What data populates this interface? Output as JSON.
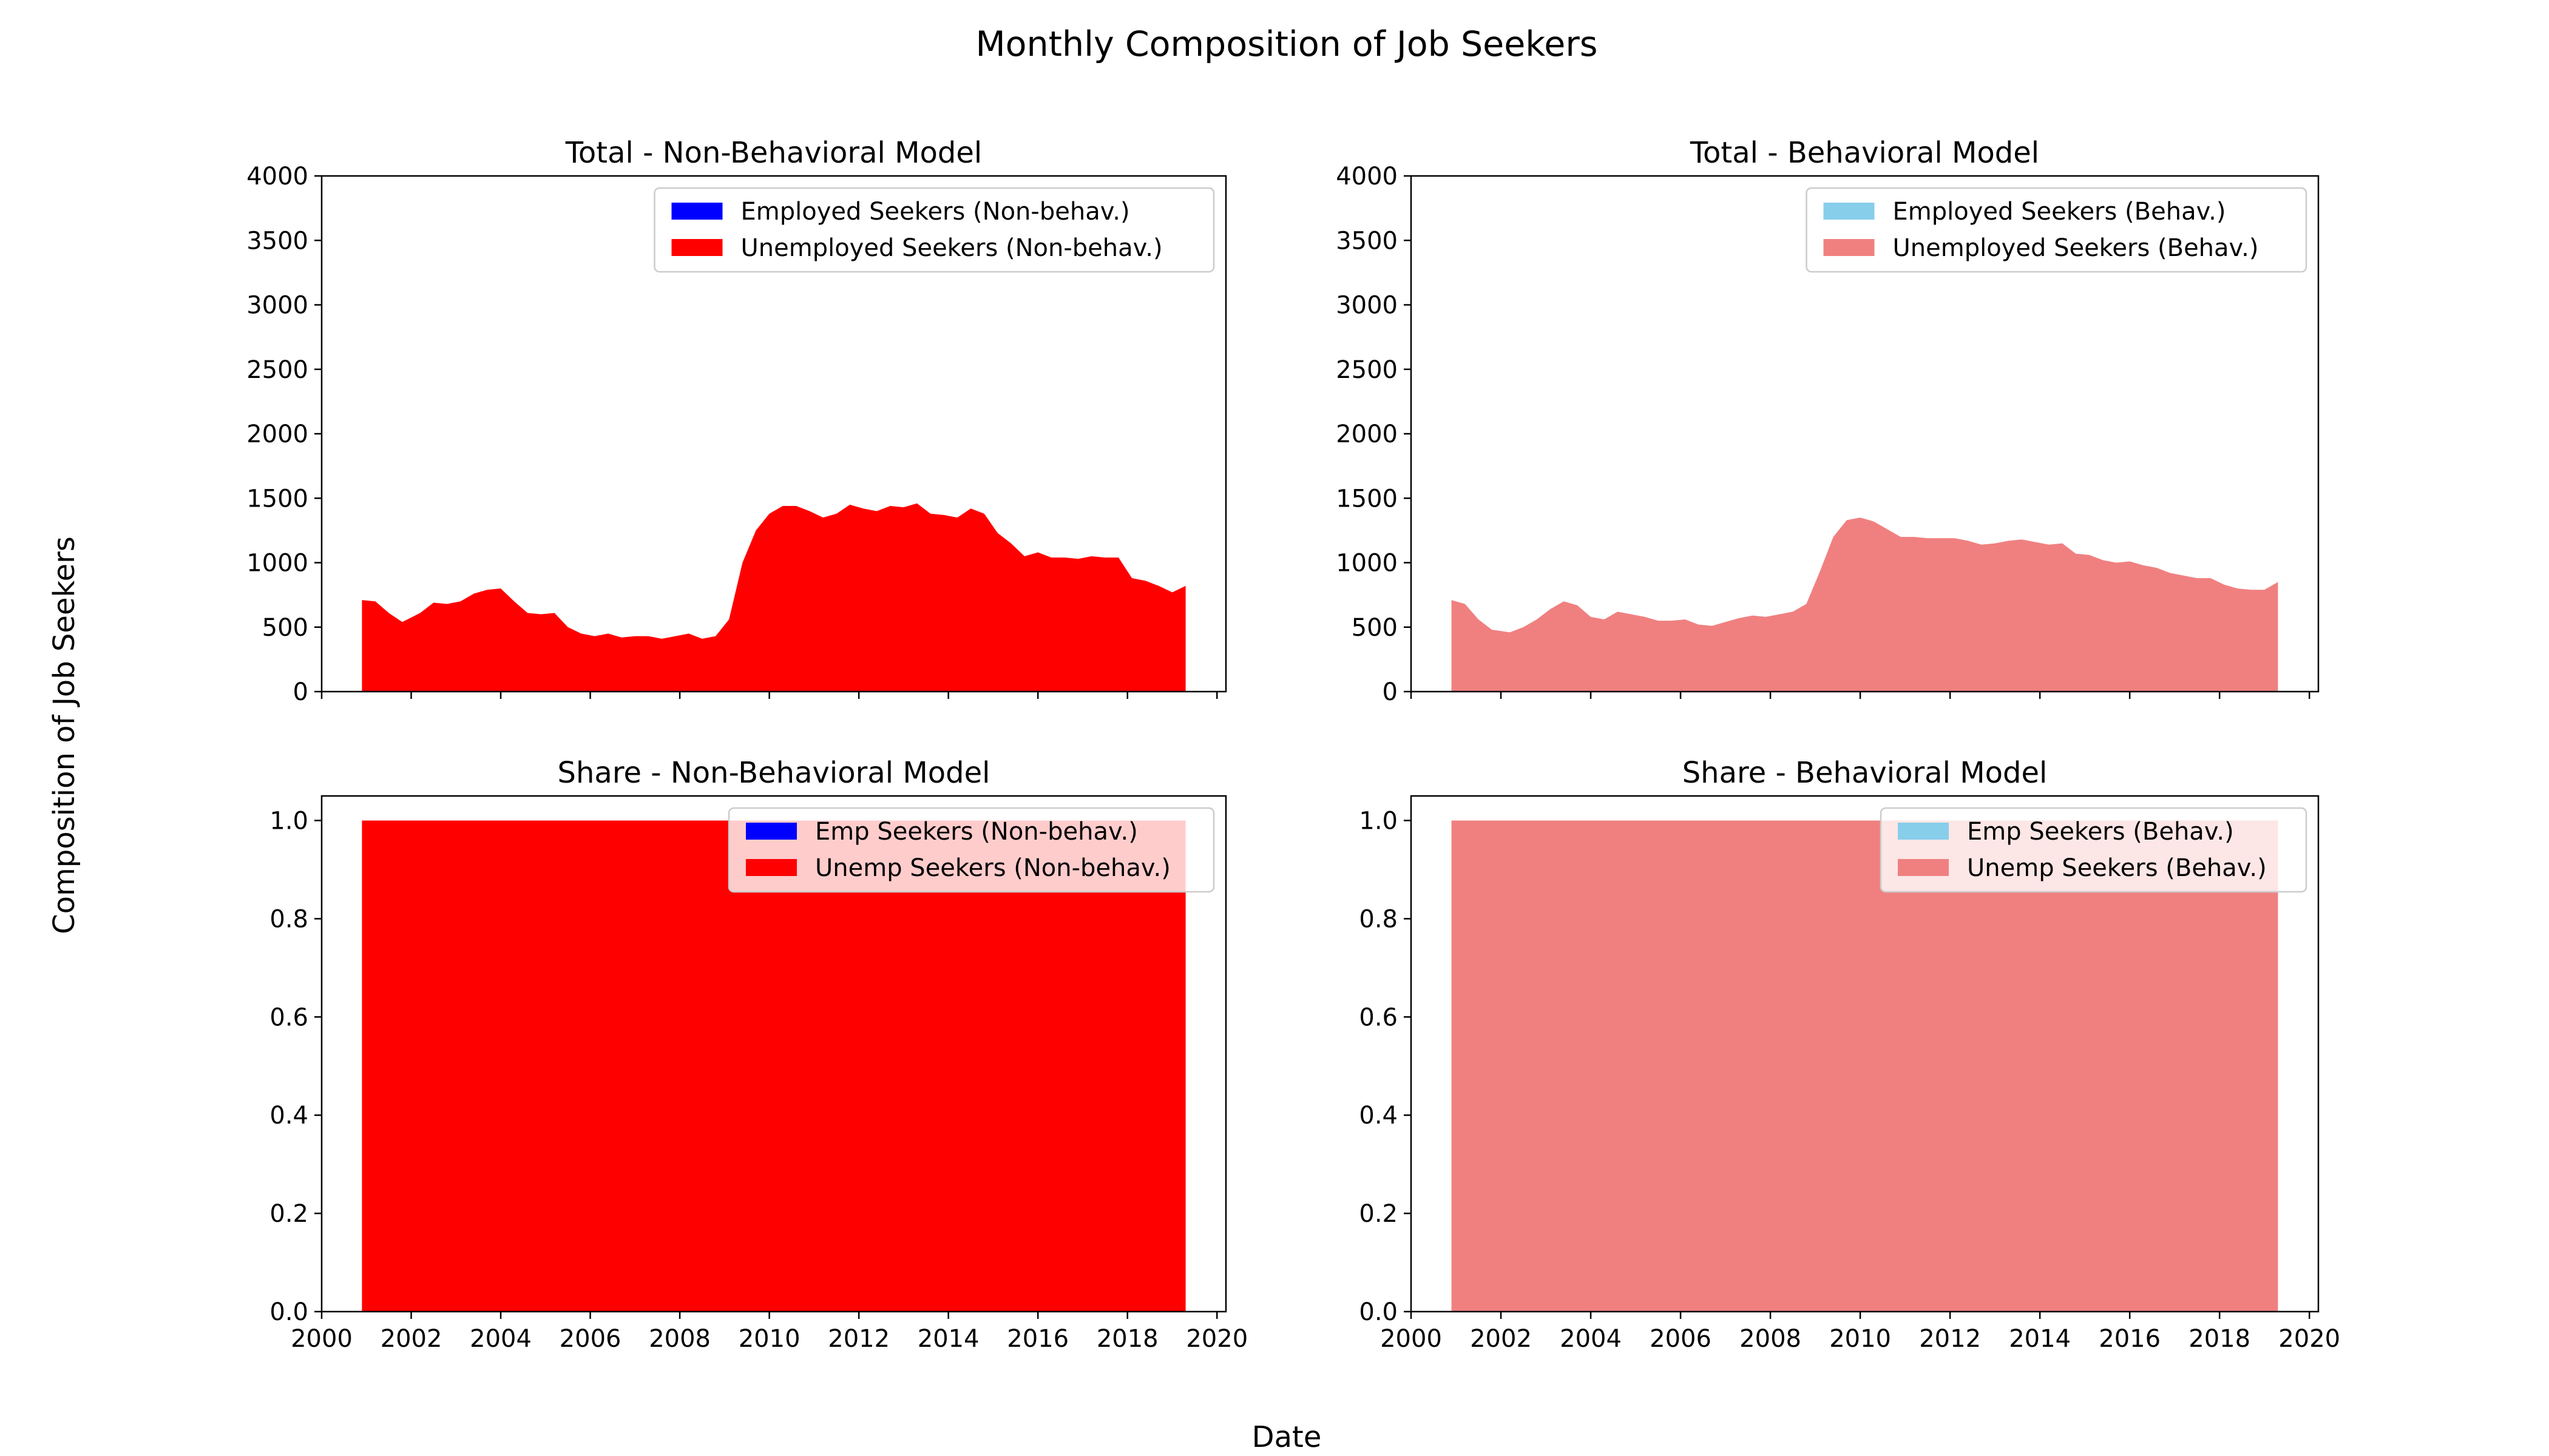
{
  "figure": {
    "title": "Monthly Composition of Job Seekers",
    "xlabel": "Date",
    "ylabel": "Composition of Job Seekers"
  },
  "colors": {
    "employed_non_behav": "#0000ff",
    "unemployed_non_behav": "#ff0000",
    "employed_behav": "#87ceeb",
    "unemployed_behav": "#f08080"
  },
  "chart_data": [
    {
      "type": "area",
      "stacked": true,
      "title": "Total - Non-Behavioral Model",
      "xlim": [
        2000,
        2020.2
      ],
      "ylim": [
        0,
        4000
      ],
      "xticks": [
        2000,
        2002,
        2004,
        2006,
        2008,
        2010,
        2012,
        2014,
        2016,
        2018,
        2020
      ],
      "show_xtick_labels": false,
      "yticks": [
        0,
        500,
        1000,
        1500,
        2000,
        2500,
        3000,
        3500,
        4000
      ],
      "ytick_labels": [
        "0",
        "500",
        "1000",
        "1500",
        "2000",
        "2500",
        "3000",
        "3500",
        "4000"
      ],
      "legend": "top-right",
      "x": [
        2000.9,
        2001.2,
        2001.5,
        2001.8,
        2002.2,
        2002.5,
        2002.8,
        2003.1,
        2003.4,
        2003.7,
        2004.0,
        2004.3,
        2004.6,
        2004.9,
        2005.2,
        2005.5,
        2005.8,
        2006.1,
        2006.4,
        2006.7,
        2007.0,
        2007.3,
        2007.6,
        2007.9,
        2008.2,
        2008.5,
        2008.8,
        2009.1,
        2009.4,
        2009.7,
        2010.0,
        2010.3,
        2010.6,
        2010.9,
        2011.2,
        2011.5,
        2011.8,
        2012.1,
        2012.4,
        2012.7,
        2013.0,
        2013.3,
        2013.6,
        2013.9,
        2014.2,
        2014.5,
        2014.8,
        2015.1,
        2015.4,
        2015.7,
        2016.0,
        2016.3,
        2016.6,
        2016.9,
        2017.2,
        2017.5,
        2017.8,
        2018.1,
        2018.4,
        2018.7,
        2019.0,
        2019.3
      ],
      "series": [
        {
          "name": "Employed Seekers (Non-behav.)",
          "color": "#0000ff",
          "values": [
            0,
            0,
            0,
            0,
            0,
            0,
            0,
            0,
            0,
            0,
            0,
            0,
            0,
            0,
            0,
            0,
            0,
            0,
            0,
            0,
            0,
            0,
            0,
            0,
            0,
            0,
            0,
            0,
            0,
            0,
            0,
            0,
            0,
            0,
            0,
            0,
            0,
            0,
            0,
            0,
            0,
            0,
            0,
            0,
            0,
            0,
            0,
            0,
            0,
            0,
            0,
            0,
            0,
            0,
            0,
            0,
            0,
            0,
            0,
            0,
            0,
            0
          ]
        },
        {
          "name": "Unemployed Seekers (Non-behav.)",
          "color": "#ff0000",
          "values": [
            710,
            700,
            610,
            540,
            610,
            690,
            680,
            700,
            760,
            790,
            800,
            700,
            610,
            600,
            610,
            500,
            450,
            430,
            450,
            420,
            430,
            430,
            410,
            430,
            450,
            410,
            430,
            560,
            1000,
            1250,
            1380,
            1440,
            1440,
            1400,
            1350,
            1380,
            1450,
            1420,
            1400,
            1440,
            1430,
            1460,
            1380,
            1370,
            1350,
            1420,
            1380,
            1230,
            1150,
            1050,
            1080,
            1040,
            1040,
            1030,
            1050,
            1040,
            1040,
            880,
            860,
            820,
            770,
            820
          ]
        }
      ]
    },
    {
      "type": "area",
      "stacked": true,
      "title": "Total - Behavioral Model",
      "xlim": [
        2000,
        2020.2
      ],
      "ylim": [
        0,
        4000
      ],
      "xticks": [
        2000,
        2002,
        2004,
        2006,
        2008,
        2010,
        2012,
        2014,
        2016,
        2018,
        2020
      ],
      "show_xtick_labels": false,
      "yticks": [
        0,
        500,
        1000,
        1500,
        2000,
        2500,
        3000,
        3500,
        4000
      ],
      "ytick_labels": [
        "0",
        "500",
        "1000",
        "1500",
        "2000",
        "2500",
        "3000",
        "3500",
        "4000"
      ],
      "legend": "top-right",
      "x": [
        2000.9,
        2001.2,
        2001.5,
        2001.8,
        2002.2,
        2002.5,
        2002.8,
        2003.1,
        2003.4,
        2003.7,
        2004.0,
        2004.3,
        2004.6,
        2004.9,
        2005.2,
        2005.5,
        2005.8,
        2006.1,
        2006.4,
        2006.7,
        2007.0,
        2007.3,
        2007.6,
        2007.9,
        2008.2,
        2008.5,
        2008.8,
        2009.1,
        2009.4,
        2009.7,
        2010.0,
        2010.3,
        2010.6,
        2010.9,
        2011.2,
        2011.5,
        2011.8,
        2012.1,
        2012.4,
        2012.7,
        2013.0,
        2013.3,
        2013.6,
        2013.9,
        2014.2,
        2014.5,
        2014.8,
        2015.1,
        2015.4,
        2015.7,
        2016.0,
        2016.3,
        2016.6,
        2016.9,
        2017.2,
        2017.5,
        2017.8,
        2018.1,
        2018.4,
        2018.7,
        2019.0,
        2019.3
      ],
      "series": [
        {
          "name": "Employed Seekers (Behav.)",
          "color": "#87ceeb",
          "values": [
            0,
            0,
            0,
            0,
            0,
            0,
            0,
            0,
            0,
            0,
            0,
            0,
            0,
            0,
            0,
            0,
            0,
            0,
            0,
            0,
            0,
            0,
            0,
            0,
            0,
            0,
            0,
            0,
            0,
            0,
            0,
            0,
            0,
            0,
            0,
            0,
            0,
            0,
            0,
            0,
            0,
            0,
            0,
            0,
            0,
            0,
            0,
            0,
            0,
            0,
            0,
            0,
            0,
            0,
            0,
            0,
            0,
            0,
            0,
            0,
            0,
            0
          ]
        },
        {
          "name": "Unemployed Seekers (Behav.)",
          "color": "#f08080",
          "values": [
            710,
            680,
            560,
            480,
            460,
            500,
            560,
            640,
            700,
            670,
            580,
            560,
            620,
            600,
            580,
            550,
            550,
            560,
            520,
            510,
            540,
            570,
            590,
            580,
            600,
            620,
            680,
            930,
            1200,
            1330,
            1350,
            1320,
            1260,
            1200,
            1200,
            1190,
            1190,
            1190,
            1170,
            1140,
            1150,
            1170,
            1180,
            1160,
            1140,
            1150,
            1070,
            1060,
            1020,
            1000,
            1010,
            980,
            960,
            920,
            900,
            880,
            880,
            830,
            800,
            790,
            790,
            850
          ]
        }
      ]
    },
    {
      "type": "area",
      "stacked": true,
      "title": "Share - Non-Behavioral Model",
      "xlim": [
        2000,
        2020.2
      ],
      "ylim": [
        0,
        1.05
      ],
      "xticks": [
        2000,
        2002,
        2004,
        2006,
        2008,
        2010,
        2012,
        2014,
        2016,
        2018,
        2020
      ],
      "xtick_labels": [
        "2000",
        "2002",
        "2004",
        "2006",
        "2008",
        "2010",
        "2012",
        "2014",
        "2016",
        "2018",
        "2020"
      ],
      "show_xtick_labels": true,
      "yticks": [
        0,
        0.2,
        0.4,
        0.6,
        0.8,
        1.0
      ],
      "ytick_labels": [
        "0.0",
        "0.2",
        "0.4",
        "0.6",
        "0.8",
        "1.0"
      ],
      "legend": "top-right",
      "x": [
        2000.9,
        2019.3
      ],
      "series": [
        {
          "name": "Emp Seekers (Non-behav.)",
          "color": "#0000ff",
          "values": [
            0,
            0
          ]
        },
        {
          "name": "Unemp Seekers (Non-behav.)",
          "color": "#ff0000",
          "values": [
            1.0,
            1.0
          ]
        }
      ]
    },
    {
      "type": "area",
      "stacked": true,
      "title": "Share - Behavioral Model",
      "xlim": [
        2000,
        2020.2
      ],
      "ylim": [
        0,
        1.05
      ],
      "xticks": [
        2000,
        2002,
        2004,
        2006,
        2008,
        2010,
        2012,
        2014,
        2016,
        2018,
        2020
      ],
      "xtick_labels": [
        "2000",
        "2002",
        "2004",
        "2006",
        "2008",
        "2010",
        "2012",
        "2014",
        "2016",
        "2018",
        "2020"
      ],
      "show_xtick_labels": true,
      "yticks": [
        0,
        0.2,
        0.4,
        0.6,
        0.8,
        1.0
      ],
      "ytick_labels": [
        "0.0",
        "0.2",
        "0.4",
        "0.6",
        "0.8",
        "1.0"
      ],
      "legend": "top-right",
      "x": [
        2000.9,
        2019.3
      ],
      "series": [
        {
          "name": "Emp Seekers (Behav.)",
          "color": "#87ceeb",
          "values": [
            0,
            0
          ]
        },
        {
          "name": "Unemp Seekers (Behav.)",
          "color": "#f08080",
          "values": [
            1.0,
            1.0
          ]
        }
      ]
    }
  ]
}
